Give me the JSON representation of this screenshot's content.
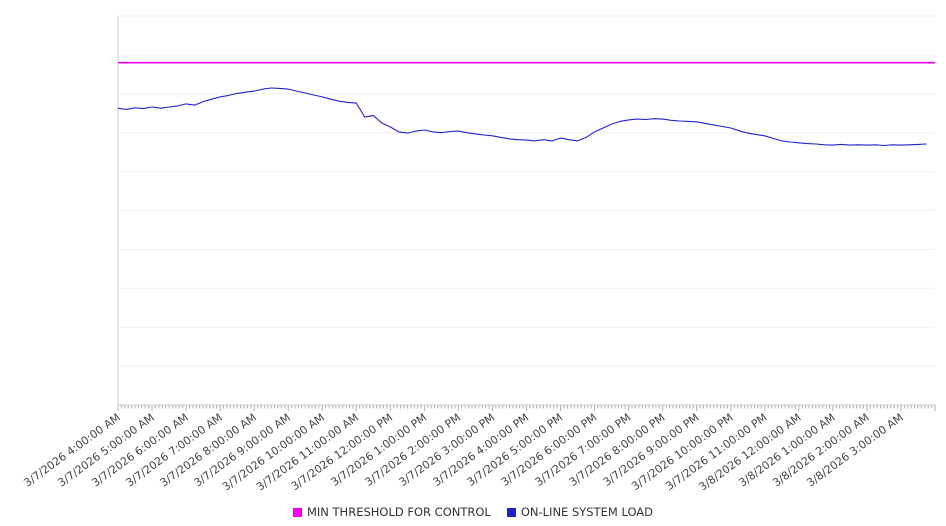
{
  "chart_data": {
    "type": "line",
    "title": "",
    "xlabel": "",
    "ylabel": "",
    "grid": "horizontal",
    "grid_color": "#f0f0f0",
    "axis_color": "#cccccc",
    "tick_label_color": "#444444",
    "legend_position": "bottom-center",
    "ylim": [
      0,
      100
    ],
    "y_gridline_step": 10,
    "x_step_hours": 0.25,
    "categories": [
      "3/7/2026 4:00:00 AM",
      "3/7/2026 5:00:00 AM",
      "3/7/2026 6:00:00 AM",
      "3/7/2026 7:00:00 AM",
      "3/7/2026 8:00:00 AM",
      "3/7/2026 9:00:00 AM",
      "3/7/2026 10:00:00 AM",
      "3/7/2026 11:00:00 AM",
      "3/7/2026 12:00:00 PM",
      "3/7/2026 1:00:00 PM",
      "3/7/2026 2:00:00 PM",
      "3/7/2026 3:00:00 PM",
      "3/7/2026 4:00:00 PM",
      "3/7/2026 5:00:00 PM",
      "3/7/2026 6:00:00 PM",
      "3/7/2026 7:00:00 PM",
      "3/7/2026 8:00:00 PM",
      "3/7/2026 9:00:00 PM",
      "3/7/2026 10:00:00 PM",
      "3/7/2026 11:00:00 PM",
      "3/8/2026 12:00:00 AM",
      "3/8/2026 1:00:00 AM",
      "3/8/2026 2:00:00 AM",
      "3/8/2026 3:00:00 AM"
    ],
    "series": [
      {
        "name": "MIN THRESHOLD FOR CONTROL",
        "type": "threshold-line",
        "color": "#ee00ee",
        "value": 88
      },
      {
        "name": "ON-LINE SYSTEM LOAD",
        "type": "line",
        "color": "#2222cc",
        "values": [
          76.3,
          76.0,
          76.4,
          76.2,
          76.6,
          76.3,
          76.6,
          76.9,
          77.4,
          77.1,
          78.0,
          78.6,
          79.2,
          79.6,
          80.1,
          80.4,
          80.7,
          81.2,
          81.5,
          81.4,
          81.2,
          80.7,
          80.2,
          79.7,
          79.2,
          78.6,
          78.1,
          77.8,
          77.6,
          74.0,
          74.4,
          72.5,
          71.5,
          70.2,
          69.9,
          70.4,
          70.7,
          70.2,
          70.0,
          70.3,
          70.4,
          70.0,
          69.7,
          69.4,
          69.2,
          68.8,
          68.4,
          68.2,
          68.1,
          67.9,
          68.2,
          67.9,
          68.6,
          68.2,
          67.9,
          68.8,
          70.2,
          71.2,
          72.2,
          72.9,
          73.3,
          73.5,
          73.4,
          73.6,
          73.5,
          73.2,
          73.0,
          72.9,
          72.8,
          72.4,
          72.0,
          71.6,
          71.2,
          70.5,
          69.9,
          69.5,
          69.2,
          68.5,
          67.9,
          67.6,
          67.4,
          67.2,
          67.1,
          66.9,
          66.8,
          67.0,
          66.8,
          66.9,
          66.8,
          66.9,
          66.7,
          66.9,
          66.8,
          66.9,
          67.0,
          67.1
        ]
      }
    ]
  },
  "legend": {
    "items": [
      {
        "label": "MIN THRESHOLD FOR CONTROL",
        "color": "#ee00ee"
      },
      {
        "label": "ON-LINE SYSTEM LOAD",
        "color": "#2222cc"
      }
    ]
  }
}
